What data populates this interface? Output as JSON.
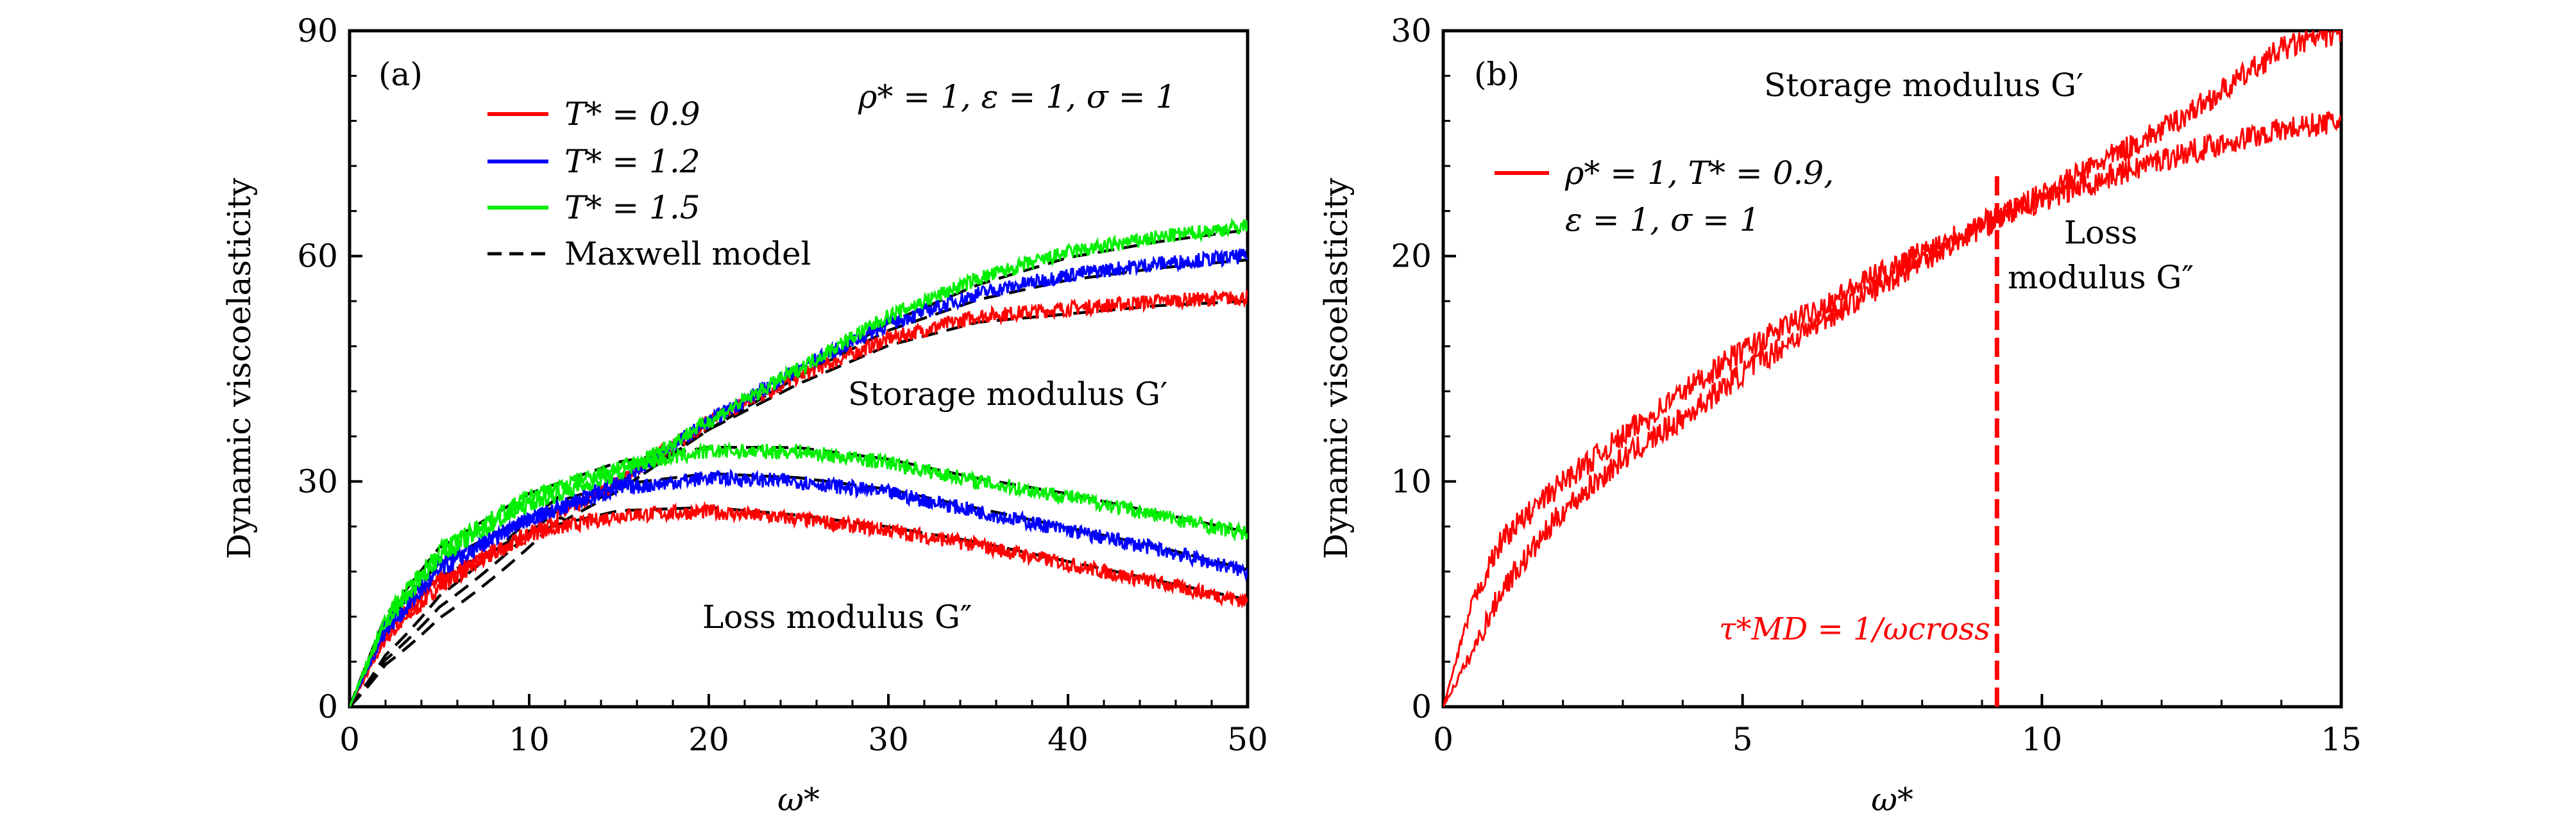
{
  "chart_data": [
    {
      "type": "line",
      "panel_label": "(a)",
      "xlabel": "ω*",
      "ylabel": "Dynamic viscoelasticity",
      "xlim": [
        0,
        50
      ],
      "ylim": [
        0,
        90
      ],
      "xticks": [
        "0",
        "10",
        "20",
        "30",
        "40",
        "50"
      ],
      "yticks": [
        "0",
        "30",
        "60",
        "90"
      ],
      "params_text": "ρ* = 1, ε = 1, σ = 1",
      "legend_position": "top-left",
      "legend": [
        {
          "label": "T* = 0.9",
          "color": "#ff0000",
          "style": "solid"
        },
        {
          "label": "T* = 1.2",
          "color": "#0000ff",
          "style": "solid"
        },
        {
          "label": "T* = 1.5",
          "color": "#00ee00",
          "style": "solid"
        },
        {
          "label": "Maxwell model",
          "color": "#000000",
          "style": "dashed"
        }
      ],
      "annotations": [
        "Storage modulus G′",
        "Loss modulus G″"
      ],
      "x": [
        0,
        2,
        5,
        10,
        15,
        20,
        25,
        30,
        35,
        40,
        45,
        50
      ],
      "series": [
        {
          "name": "T* = 0.9",
          "quantity": "Storage modulus G′",
          "color": "#ff0000",
          "values": [
            0,
            9,
            16,
            23,
            30,
            38,
            44,
            49,
            52,
            53,
            54,
            54.5
          ]
        },
        {
          "name": "T* = 0.9",
          "quantity": "Loss modulus G″",
          "color": "#ff0000",
          "values": [
            0,
            10,
            17,
            23,
            25.5,
            26,
            25,
            23.5,
            21.5,
            19,
            16.5,
            14
          ]
        },
        {
          "name": "T* = 1.2",
          "quantity": "Storage modulus G′",
          "color": "#0000ff",
          "values": [
            0,
            10,
            18,
            25,
            30,
            38,
            45,
            51,
            55,
            57.5,
            59,
            60
          ]
        },
        {
          "name": "T* = 1.2",
          "quantity": "Loss modulus G″",
          "color": "#0000ff",
          "values": [
            0,
            11,
            19,
            25,
            29,
            30.5,
            30,
            28.5,
            26,
            23.5,
            21,
            18
          ]
        },
        {
          "name": "T* = 1.5",
          "quantity": "Storage modulus G′",
          "color": "#00ee00",
          "values": [
            0,
            11,
            20,
            27,
            31,
            38,
            45,
            52,
            57,
            60.5,
            62.5,
            64
          ]
        },
        {
          "name": "T* = 1.5",
          "quantity": "Loss modulus G″",
          "color": "#00ee00",
          "values": [
            0,
            12,
            21,
            28,
            32,
            34,
            34,
            32.5,
            30,
            28,
            25.5,
            23
          ]
        }
      ]
    },
    {
      "type": "line",
      "panel_label": "(b)",
      "xlabel": "ω*",
      "ylabel": "Dynamic viscoelasticity",
      "xlim": [
        0,
        15
      ],
      "ylim": [
        0,
        30
      ],
      "xticks": [
        "0",
        "5",
        "10",
        "15"
      ],
      "yticks": [
        "0",
        "10",
        "20",
        "30"
      ],
      "legend_position": "top-left",
      "legend": [
        {
          "label_line1": "ρ* = 1, T* = 0.9,",
          "label_line2": "ε = 1, σ = 1",
          "color": "#ff0000",
          "style": "solid"
        }
      ],
      "annotations": [
        "Storage modulus G′",
        "Loss",
        "modulus G″"
      ],
      "crossover": {
        "label": "τ*MD = 1/ωcross",
        "x": 9.25,
        "color": "#ff0000"
      },
      "x": [
        0,
        0.5,
        1,
        2,
        3,
        4,
        5,
        6,
        7,
        8,
        9,
        10,
        11,
        12,
        13,
        14,
        15
      ],
      "series": [
        {
          "name": "Storage modulus G′",
          "color": "#ff0000",
          "values": [
            0,
            2.5,
            5.3,
            8.7,
            11.0,
            12.8,
            14.8,
            16.6,
            18.2,
            19.8,
            21.3,
            22.7,
            24.2,
            25.6,
            27.3,
            29.2,
            30.0
          ]
        },
        {
          "name": "Loss modulus G″",
          "color": "#ff0000",
          "values": [
            0,
            4.7,
            7.5,
            10.0,
            12.0,
            14.0,
            15.8,
            17.3,
            18.8,
            20.2,
            21.5,
            22.5,
            23.4,
            24.3,
            25.0,
            25.6,
            26.0
          ]
        }
      ]
    }
  ]
}
